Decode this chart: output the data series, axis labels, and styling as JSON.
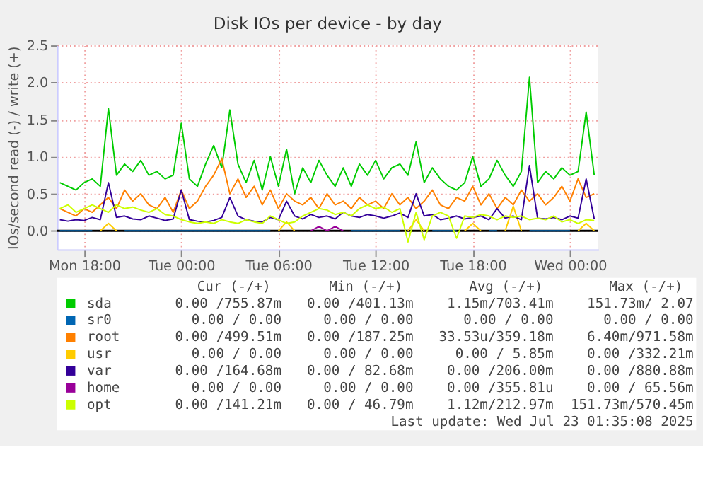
{
  "chart_data": {
    "type": "line",
    "title": "Disk IOs per device - by day",
    "ylabel": "IOs/second read (-) / write (+)",
    "x": [
      "2025-07-21T16:30",
      "2025-07-21T17:00",
      "2025-07-21T17:30",
      "2025-07-21T18:00",
      "2025-07-21T18:30",
      "2025-07-21T19:00",
      "2025-07-21T19:30",
      "2025-07-21T20:00",
      "2025-07-21T20:30",
      "2025-07-21T21:00",
      "2025-07-21T21:30",
      "2025-07-21T22:00",
      "2025-07-21T22:30",
      "2025-07-21T23:00",
      "2025-07-21T23:30",
      "2025-07-22T00:00",
      "2025-07-22T00:30",
      "2025-07-22T01:00",
      "2025-07-22T01:30",
      "2025-07-22T02:00",
      "2025-07-22T02:30",
      "2025-07-22T03:00",
      "2025-07-22T03:30",
      "2025-07-22T04:00",
      "2025-07-22T04:30",
      "2025-07-22T05:00",
      "2025-07-22T05:30",
      "2025-07-22T06:00",
      "2025-07-22T06:30",
      "2025-07-22T07:00",
      "2025-07-22T07:30",
      "2025-07-22T08:00",
      "2025-07-22T08:30",
      "2025-07-22T09:00",
      "2025-07-22T09:30",
      "2025-07-22T10:00",
      "2025-07-22T10:30",
      "2025-07-22T11:00",
      "2025-07-22T11:30",
      "2025-07-22T12:00",
      "2025-07-22T12:30",
      "2025-07-22T13:00",
      "2025-07-22T13:30",
      "2025-07-22T14:00",
      "2025-07-22T14:30",
      "2025-07-22T15:00",
      "2025-07-22T15:30",
      "2025-07-22T16:00",
      "2025-07-22T16:30",
      "2025-07-22T17:00",
      "2025-07-22T17:30",
      "2025-07-22T18:00",
      "2025-07-22T18:30",
      "2025-07-22T19:00",
      "2025-07-22T19:30",
      "2025-07-22T20:00",
      "2025-07-22T20:30",
      "2025-07-22T21:00",
      "2025-07-22T21:30",
      "2025-07-22T22:00",
      "2025-07-22T22:30",
      "2025-07-22T23:00",
      "2025-07-22T23:30",
      "2025-07-23T00:00",
      "2025-07-23T00:30",
      "2025-07-23T01:00",
      "2025-07-23T01:30"
    ],
    "xlim": [
      "2025-07-21T16:20",
      "2025-07-23T01:45"
    ],
    "xticks": [
      {
        "value": "2025-07-21T18:00",
        "label": "Mon 18:00"
      },
      {
        "value": "2025-07-22T00:00",
        "label": "Tue 00:00"
      },
      {
        "value": "2025-07-22T06:00",
        "label": "Tue 06:00"
      },
      {
        "value": "2025-07-22T12:00",
        "label": "Tue 12:00"
      },
      {
        "value": "2025-07-22T18:00",
        "label": "Tue 18:00"
      },
      {
        "value": "2025-07-23T00:00",
        "label": "Wed 00:00"
      }
    ],
    "ylim": [
      -0.25,
      2.5
    ],
    "yticks": [
      {
        "value": 0,
        "label": "0.0"
      },
      {
        "value": 0.5,
        "label": "0.5"
      },
      {
        "value": 1,
        "label": "1.0"
      },
      {
        "value": 1.5,
        "label": "1.5"
      },
      {
        "value": 2,
        "label": "2.0"
      },
      {
        "value": 2.5,
        "label": "2.5"
      }
    ],
    "grid": true,
    "legend": "bottom",
    "line_style": "solid",
    "ref_lines": [
      {
        "axis": "y",
        "value": 0,
        "color": "#000000"
      }
    ],
    "series": [
      {
        "name": "sda",
        "color": "#00cc00",
        "values": [
          0.65,
          0.6,
          0.55,
          0.65,
          0.7,
          0.6,
          1.65,
          0.75,
          0.9,
          0.8,
          0.95,
          0.75,
          0.8,
          0.7,
          0.75,
          1.45,
          0.7,
          0.6,
          0.9,
          1.15,
          0.85,
          1.63,
          0.9,
          0.65,
          0.95,
          0.55,
          1.0,
          0.6,
          1.1,
          0.5,
          0.85,
          0.65,
          0.95,
          0.75,
          0.6,
          0.85,
          0.6,
          0.9,
          0.75,
          0.95,
          0.7,
          0.85,
          0.9,
          0.75,
          1.2,
          0.65,
          0.85,
          0.7,
          0.6,
          0.55,
          0.65,
          1.0,
          0.6,
          0.7,
          0.95,
          0.75,
          0.6,
          0.8,
          2.07,
          0.65,
          0.8,
          0.7,
          0.85,
          0.75,
          0.8,
          1.6,
          0.75
        ]
      },
      {
        "name": "sr0",
        "color": "#0066b3",
        "values": [
          0,
          0,
          0,
          0,
          0,
          null,
          null,
          null,
          0,
          0,
          0,
          0,
          0,
          0,
          0,
          0,
          0,
          0,
          0,
          0,
          0,
          0,
          0,
          0,
          0,
          0,
          0,
          null,
          null,
          null,
          null,
          null,
          null,
          null,
          null,
          null,
          0,
          0,
          0,
          0,
          0,
          0,
          0,
          null,
          null,
          null,
          0,
          0,
          0,
          0,
          null,
          null,
          null,
          0,
          0,
          null,
          null,
          null,
          0,
          0,
          0,
          0,
          0,
          0,
          null,
          null,
          null
        ]
      },
      {
        "name": "root",
        "color": "#ff8000",
        "values": [
          0.3,
          0.25,
          0.2,
          0.3,
          0.25,
          0.35,
          0.45,
          0.3,
          0.55,
          0.4,
          0.5,
          0.35,
          0.3,
          0.45,
          0.25,
          0.55,
          0.3,
          0.4,
          0.6,
          0.75,
          0.97,
          0.5,
          0.7,
          0.45,
          0.6,
          0.35,
          0.55,
          0.3,
          0.5,
          0.4,
          0.35,
          0.45,
          0.3,
          0.5,
          0.35,
          0.4,
          0.3,
          0.45,
          0.35,
          0.4,
          0.3,
          0.5,
          0.35,
          0.45,
          0.3,
          0.4,
          0.55,
          0.35,
          0.3,
          0.45,
          0.4,
          0.6,
          0.35,
          0.5,
          0.3,
          0.45,
          0.35,
          0.55,
          0.4,
          0.5,
          0.35,
          0.45,
          0.6,
          0.4,
          0.7,
          0.45,
          0.5
        ]
      },
      {
        "name": "usr",
        "color": "#ffcc00",
        "values": [
          null,
          null,
          null,
          null,
          null,
          0,
          0.1,
          0,
          null,
          null,
          null,
          null,
          null,
          null,
          null,
          null,
          null,
          null,
          null,
          null,
          null,
          null,
          null,
          null,
          null,
          null,
          null,
          0,
          0.12,
          0,
          null,
          null,
          null,
          null,
          null,
          null,
          null,
          null,
          null,
          null,
          null,
          null,
          null,
          0,
          0.15,
          0,
          null,
          null,
          null,
          null,
          0,
          0.1,
          0,
          null,
          null,
          0,
          0.33,
          0,
          null,
          null,
          null,
          null,
          null,
          null,
          0,
          0.1,
          0
        ]
      },
      {
        "name": "var",
        "color": "#330099",
        "values": [
          0.15,
          0.13,
          0.15,
          0.14,
          0.18,
          0.15,
          0.65,
          0.18,
          0.2,
          0.16,
          0.15,
          0.2,
          0.17,
          0.14,
          0.16,
          0.55,
          0.15,
          0.13,
          0.12,
          0.14,
          0.18,
          0.45,
          0.2,
          0.15,
          0.13,
          0.12,
          0.18,
          0.15,
          0.4,
          0.2,
          0.16,
          0.22,
          0.18,
          0.2,
          0.16,
          0.25,
          0.2,
          0.18,
          0.22,
          0.2,
          0.17,
          0.2,
          0.24,
          0.18,
          0.5,
          0.2,
          0.22,
          0.15,
          0.17,
          0.2,
          0.16,
          0.18,
          0.2,
          0.15,
          0.3,
          0.17,
          0.2,
          0.15,
          0.88,
          0.17,
          0.16,
          0.18,
          0.15,
          0.2,
          0.17,
          0.7,
          0.16
        ]
      },
      {
        "name": "home",
        "color": "#990099",
        "values": [
          null,
          null,
          null,
          null,
          null,
          null,
          null,
          null,
          null,
          null,
          null,
          null,
          null,
          null,
          null,
          null,
          null,
          null,
          null,
          null,
          null,
          null,
          null,
          null,
          null,
          null,
          null,
          null,
          null,
          null,
          null,
          0,
          0.06,
          0,
          0.06,
          0,
          null,
          null,
          null,
          null,
          null,
          null,
          null,
          null,
          null,
          null,
          null,
          null,
          null,
          null,
          null,
          null,
          null,
          null,
          null,
          null,
          null,
          null,
          null,
          null,
          null,
          null,
          null,
          null,
          null,
          null,
          null
        ]
      },
      {
        "name": "opt",
        "color": "#ccff00",
        "values": [
          0.3,
          0.35,
          0.25,
          0.3,
          0.35,
          0.3,
          0.25,
          0.35,
          0.3,
          0.32,
          0.28,
          0.25,
          0.3,
          0.22,
          0.2,
          0.15,
          0.12,
          0.1,
          0.12,
          0.1,
          0.15,
          0.12,
          0.1,
          0.15,
          0.12,
          0.1,
          0.2,
          0.15,
          0.1,
          0.12,
          0.2,
          0.25,
          0.3,
          0.28,
          0.22,
          0.25,
          0.2,
          0.3,
          0.35,
          0.3,
          0.32,
          0.25,
          0.3,
          -0.15,
          0.25,
          -0.12,
          0.2,
          0.25,
          0.2,
          -0.1,
          0.2,
          0.18,
          0.22,
          0.2,
          0.15,
          0.2,
          0.18,
          0.2,
          0.15,
          0.17,
          0.15,
          0.2,
          0.12,
          0.15,
          0.1,
          0.15,
          0.14
        ]
      }
    ],
    "annotations": [
      "Cur (-/+)",
      "Min (-/+)",
      "Avg (-/+)",
      "Max (-/+)",
      "0.00 /755.87m",
      "0.00 /401.13m",
      "1.15m/703.41m",
      "151.73m/  2.07",
      "0.00 /  0.00",
      "0.00 /  0.00",
      "0.00 /  0.00",
      "0.00 /  0.00",
      "0.00 /499.51m",
      "0.00 /187.25m",
      "33.53u/359.18m",
      "6.40m/971.58m",
      "0.00 /  0.00",
      "0.00 /  0.00",
      "0.00 /  5.85m",
      "0.00 /332.21m",
      "0.00 /164.68m",
      "0.00 / 82.68m",
      "0.00 /206.00m",
      "0.00 /880.88m",
      "0.00 /  0.00",
      "0.00 /  0.00",
      "0.00 /355.81u",
      "0.00 / 65.56m",
      "0.00 /141.21m",
      "0.00 / 46.79m",
      "1.12m/212.97m",
      "151.73m/570.45m",
      "Last update: Wed Jul 23 01:35:08 2025"
    ]
  }
}
